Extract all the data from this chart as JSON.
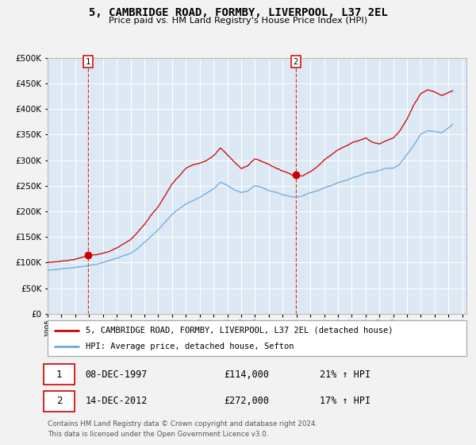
{
  "title": "5, CAMBRIDGE ROAD, FORMBY, LIVERPOOL, L37 2EL",
  "subtitle": "Price paid vs. HM Land Registry's House Price Index (HPI)",
  "bg_color": "#dce9f5",
  "hpi_color": "#6fa8dc",
  "price_color": "#cc0000",
  "ylim": [
    0,
    500000
  ],
  "yticks": [
    0,
    50000,
    100000,
    150000,
    200000,
    250000,
    300000,
    350000,
    400000,
    450000,
    500000
  ],
  "xlim_start": 1995.0,
  "xlim_end": 2025.3,
  "xticks": [
    1995,
    1996,
    1997,
    1998,
    1999,
    2000,
    2001,
    2002,
    2003,
    2004,
    2005,
    2006,
    2007,
    2008,
    2009,
    2010,
    2011,
    2012,
    2013,
    2014,
    2015,
    2016,
    2017,
    2018,
    2019,
    2020,
    2021,
    2022,
    2023,
    2024,
    2025
  ],
  "sale1_date": 1997.935,
  "sale1_price": 114000,
  "sale2_date": 2012.954,
  "sale2_price": 272000,
  "sale1_date_str": "08-DEC-1997",
  "sale1_price_str": "£114,000",
  "sale1_hpi_str": "21% ↑ HPI",
  "sale2_date_str": "14-DEC-2012",
  "sale2_price_str": "£272,000",
  "sale2_hpi_str": "17% ↑ HPI",
  "legend_label1": "5, CAMBRIDGE ROAD, FORMBY, LIVERPOOL, L37 2EL (detached house)",
  "legend_label2": "HPI: Average price, detached house, Sefton",
  "footer1": "Contains HM Land Registry data © Crown copyright and database right 2024.",
  "footer2": "This data is licensed under the Open Government Licence v3.0.",
  "hpi_anchors_x": [
    1995.0,
    1995.5,
    1996.0,
    1996.5,
    1997.0,
    1997.5,
    1998.0,
    1998.5,
    1999.0,
    1999.5,
    2000.0,
    2000.5,
    2001.0,
    2001.5,
    2002.0,
    2002.5,
    2003.0,
    2003.5,
    2004.0,
    2004.5,
    2005.0,
    2005.5,
    2006.0,
    2006.5,
    2007.0,
    2007.5,
    2008.0,
    2008.5,
    2009.0,
    2009.5,
    2010.0,
    2010.5,
    2011.0,
    2011.5,
    2012.0,
    2012.5,
    2013.0,
    2013.5,
    2014.0,
    2014.5,
    2015.0,
    2015.5,
    2016.0,
    2016.5,
    2017.0,
    2017.5,
    2018.0,
    2018.5,
    2019.0,
    2019.5,
    2020.0,
    2020.5,
    2021.0,
    2021.5,
    2022.0,
    2022.5,
    2023.0,
    2023.5,
    2024.0,
    2024.3
  ],
  "hpi_anchors_y": [
    85000,
    86000,
    88000,
    89500,
    91000,
    92500,
    95000,
    97000,
    100000,
    104000,
    108000,
    113000,
    118000,
    128000,
    140000,
    152000,
    165000,
    180000,
    195000,
    206000,
    215000,
    222000,
    228000,
    236000,
    245000,
    258000,
    252000,
    243000,
    238000,
    242000,
    252000,
    249000,
    243000,
    240000,
    235000,
    232000,
    231000,
    234000,
    240000,
    244000,
    250000,
    254000,
    260000,
    264000,
    270000,
    274000,
    280000,
    282000,
    285000,
    289000,
    288000,
    297000,
    315000,
    333000,
    355000,
    361000,
    360000,
    358000,
    368000,
    375000
  ],
  "price_anchors_x": [
    1995.0,
    1995.5,
    1996.0,
    1996.5,
    1997.0,
    1997.935,
    1998.5,
    1999.0,
    1999.5,
    2000.0,
    2000.5,
    2001.0,
    2001.5,
    2002.0,
    2002.5,
    2003.0,
    2003.5,
    2004.0,
    2004.5,
    2005.0,
    2005.5,
    2006.0,
    2006.5,
    2007.0,
    2007.5,
    2008.0,
    2008.5,
    2009.0,
    2009.5,
    2010.0,
    2010.5,
    2011.0,
    2011.5,
    2012.0,
    2012.5,
    2012.954,
    2013.5,
    2014.0,
    2014.5,
    2015.0,
    2015.5,
    2016.0,
    2016.5,
    2017.0,
    2017.5,
    2018.0,
    2018.5,
    2019.0,
    2019.5,
    2020.0,
    2020.5,
    2021.0,
    2021.5,
    2022.0,
    2022.5,
    2023.0,
    2023.5,
    2024.0,
    2024.3
  ],
  "price_anchors_y": [
    100000,
    101000,
    103000,
    105000,
    107000,
    114000,
    116000,
    118000,
    122000,
    128000,
    136000,
    145000,
    160000,
    175000,
    194000,
    210000,
    232000,
    255000,
    270000,
    285000,
    292000,
    295000,
    300000,
    310000,
    325000,
    312000,
    298000,
    285000,
    292000,
    305000,
    300000,
    295000,
    288000,
    282000,
    277000,
    272000,
    274000,
    282000,
    292000,
    305000,
    315000,
    325000,
    332000,
    340000,
    344000,
    350000,
    342000,
    338000,
    344000,
    348000,
    363000,
    385000,
    413000,
    435000,
    442000,
    438000,
    432000,
    438000,
    442000
  ]
}
